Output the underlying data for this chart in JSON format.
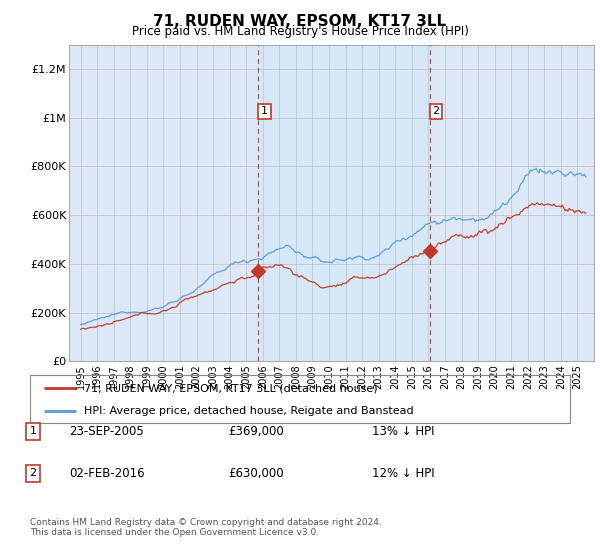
{
  "title": "71, RUDEN WAY, EPSOM, KT17 3LL",
  "subtitle": "Price paid vs. HM Land Registry's House Price Index (HPI)",
  "ylim": [
    0,
    1300000
  ],
  "yticks": [
    0,
    200000,
    400000,
    600000,
    800000,
    1000000,
    1200000
  ],
  "ytick_labels": [
    "£0",
    "£200K",
    "£400K",
    "£600K",
    "£800K",
    "£1M",
    "£1.2M"
  ],
  "bg_color": "#ffffff",
  "plot_bg_color": "#dce8f5",
  "legend_label_red": "71, RUDEN WAY, EPSOM, KT17 3LL (detached house)",
  "legend_label_blue": "HPI: Average price, detached house, Reigate and Banstead",
  "sale1_date": "23-SEP-2005",
  "sale1_price": 369000,
  "sale1_pct": "13%",
  "sale2_date": "02-FEB-2016",
  "sale2_price": 630000,
  "sale2_pct": "12%",
  "footer": "Contains HM Land Registry data © Crown copyright and database right 2024.\nThis data is licensed under the Open Government Licence v3.0.",
  "sale1_x": 2005.73,
  "sale2_x": 2016.09,
  "hpi_color": "#5b9bd5",
  "price_color": "#c0392b",
  "vline_color": "#c0392b",
  "shade_color": "#d6e8f7",
  "grid_color": "#bbbbbb"
}
